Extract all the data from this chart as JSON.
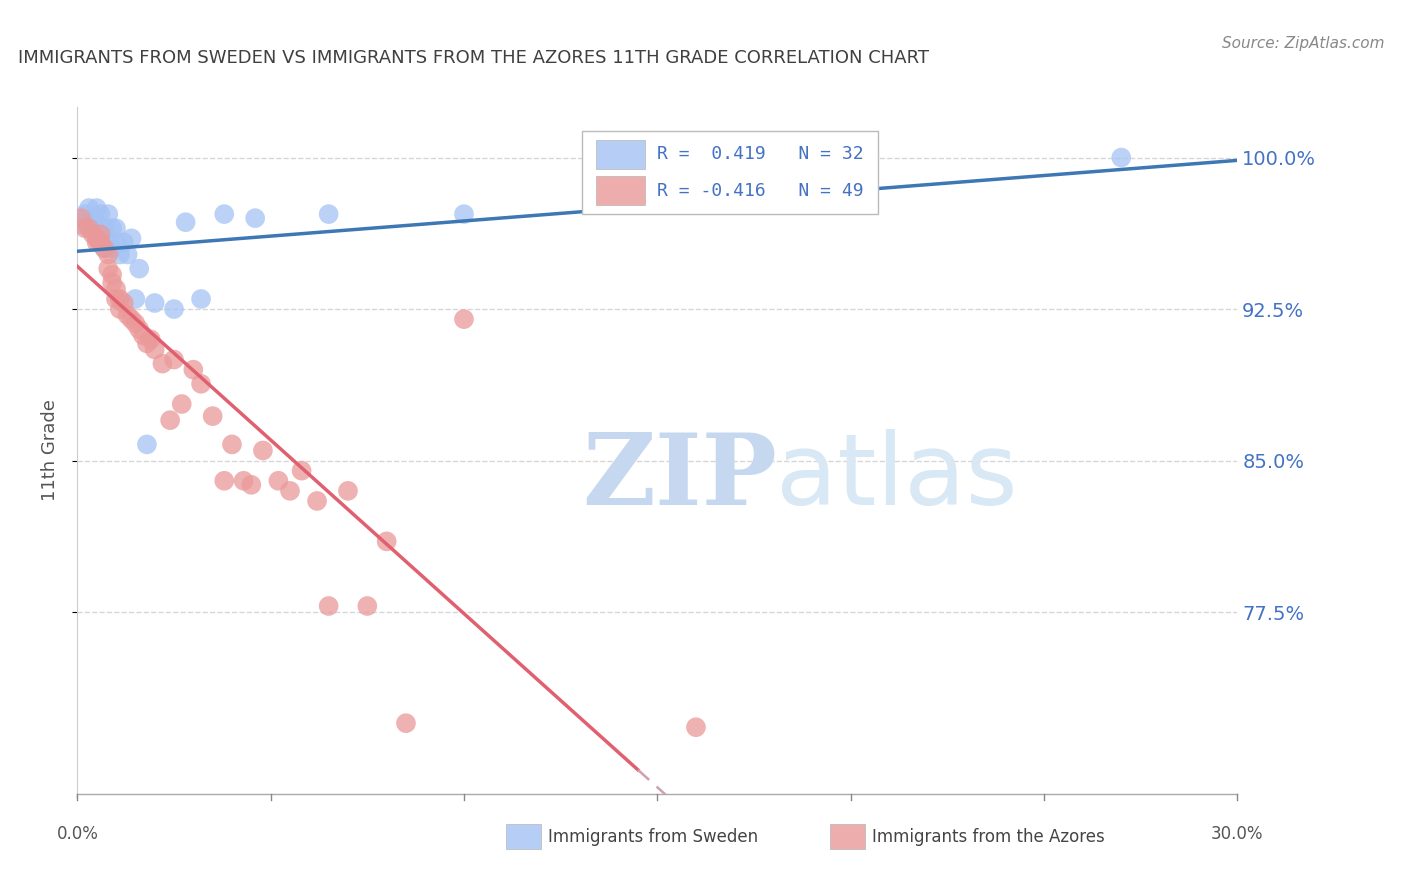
{
  "title": "IMMIGRANTS FROM SWEDEN VS IMMIGRANTS FROM THE AZORES 11TH GRADE CORRELATION CHART",
  "source_text": "Source: ZipAtlas.com",
  "ylabel": "11th Grade",
  "ytick_labels": [
    "100.0%",
    "92.5%",
    "85.0%",
    "77.5%"
  ],
  "ytick_values": [
    1.0,
    0.925,
    0.85,
    0.775
  ],
  "xlim": [
    0.0,
    0.3
  ],
  "ylim": [
    0.685,
    1.025
  ],
  "sweden_R": 0.419,
  "sweden_N": 32,
  "azores_R": -0.416,
  "azores_N": 49,
  "legend_sweden_R_text": "R =  0.419",
  "legend_azores_R_text": "R = -0.416",
  "sweden_color": "#a4c2f4",
  "azores_color": "#ea9999",
  "sweden_line_color": "#3d78b5",
  "azores_line_color": "#e06070",
  "azores_dash_color": "#d0a0b0",
  "sweden_scatter_x": [
    0.001,
    0.002,
    0.003,
    0.004,
    0.005,
    0.005,
    0.006,
    0.006,
    0.007,
    0.007,
    0.008,
    0.008,
    0.009,
    0.009,
    0.01,
    0.01,
    0.011,
    0.012,
    0.013,
    0.014,
    0.015,
    0.016,
    0.018,
    0.02,
    0.025,
    0.028,
    0.032,
    0.038,
    0.046,
    0.065,
    0.1,
    0.27
  ],
  "sweden_scatter_y": [
    0.967,
    0.972,
    0.975,
    0.967,
    0.975,
    0.968,
    0.972,
    0.958,
    0.965,
    0.955,
    0.972,
    0.958,
    0.965,
    0.955,
    0.965,
    0.958,
    0.952,
    0.958,
    0.952,
    0.96,
    0.93,
    0.945,
    0.858,
    0.928,
    0.925,
    0.968,
    0.93,
    0.972,
    0.97,
    0.972,
    0.972,
    1.0
  ],
  "azores_scatter_x": [
    0.001,
    0.002,
    0.003,
    0.004,
    0.005,
    0.005,
    0.006,
    0.006,
    0.007,
    0.008,
    0.008,
    0.009,
    0.009,
    0.01,
    0.01,
    0.011,
    0.011,
    0.012,
    0.013,
    0.014,
    0.015,
    0.016,
    0.017,
    0.018,
    0.019,
    0.02,
    0.022,
    0.024,
    0.025,
    0.027,
    0.03,
    0.032,
    0.035,
    0.038,
    0.04,
    0.043,
    0.045,
    0.048,
    0.052,
    0.055,
    0.058,
    0.062,
    0.065,
    0.07,
    0.075,
    0.08,
    0.085,
    0.1,
    0.16
  ],
  "azores_scatter_y": [
    0.97,
    0.965,
    0.965,
    0.962,
    0.96,
    0.958,
    0.962,
    0.958,
    0.955,
    0.952,
    0.945,
    0.942,
    0.938,
    0.935,
    0.93,
    0.93,
    0.925,
    0.928,
    0.922,
    0.92,
    0.918,
    0.915,
    0.912,
    0.908,
    0.91,
    0.905,
    0.898,
    0.87,
    0.9,
    0.878,
    0.895,
    0.888,
    0.872,
    0.84,
    0.858,
    0.84,
    0.838,
    0.855,
    0.84,
    0.835,
    0.845,
    0.83,
    0.778,
    0.835,
    0.778,
    0.81,
    0.72,
    0.92,
    0.718
  ],
  "watermark_zip": "ZIP",
  "watermark_atlas": "atlas",
  "background_color": "#ffffff",
  "grid_color": "#cccccc",
  "title_color": "#404040",
  "ytick_color": "#4472c4",
  "source_color": "#888888"
}
